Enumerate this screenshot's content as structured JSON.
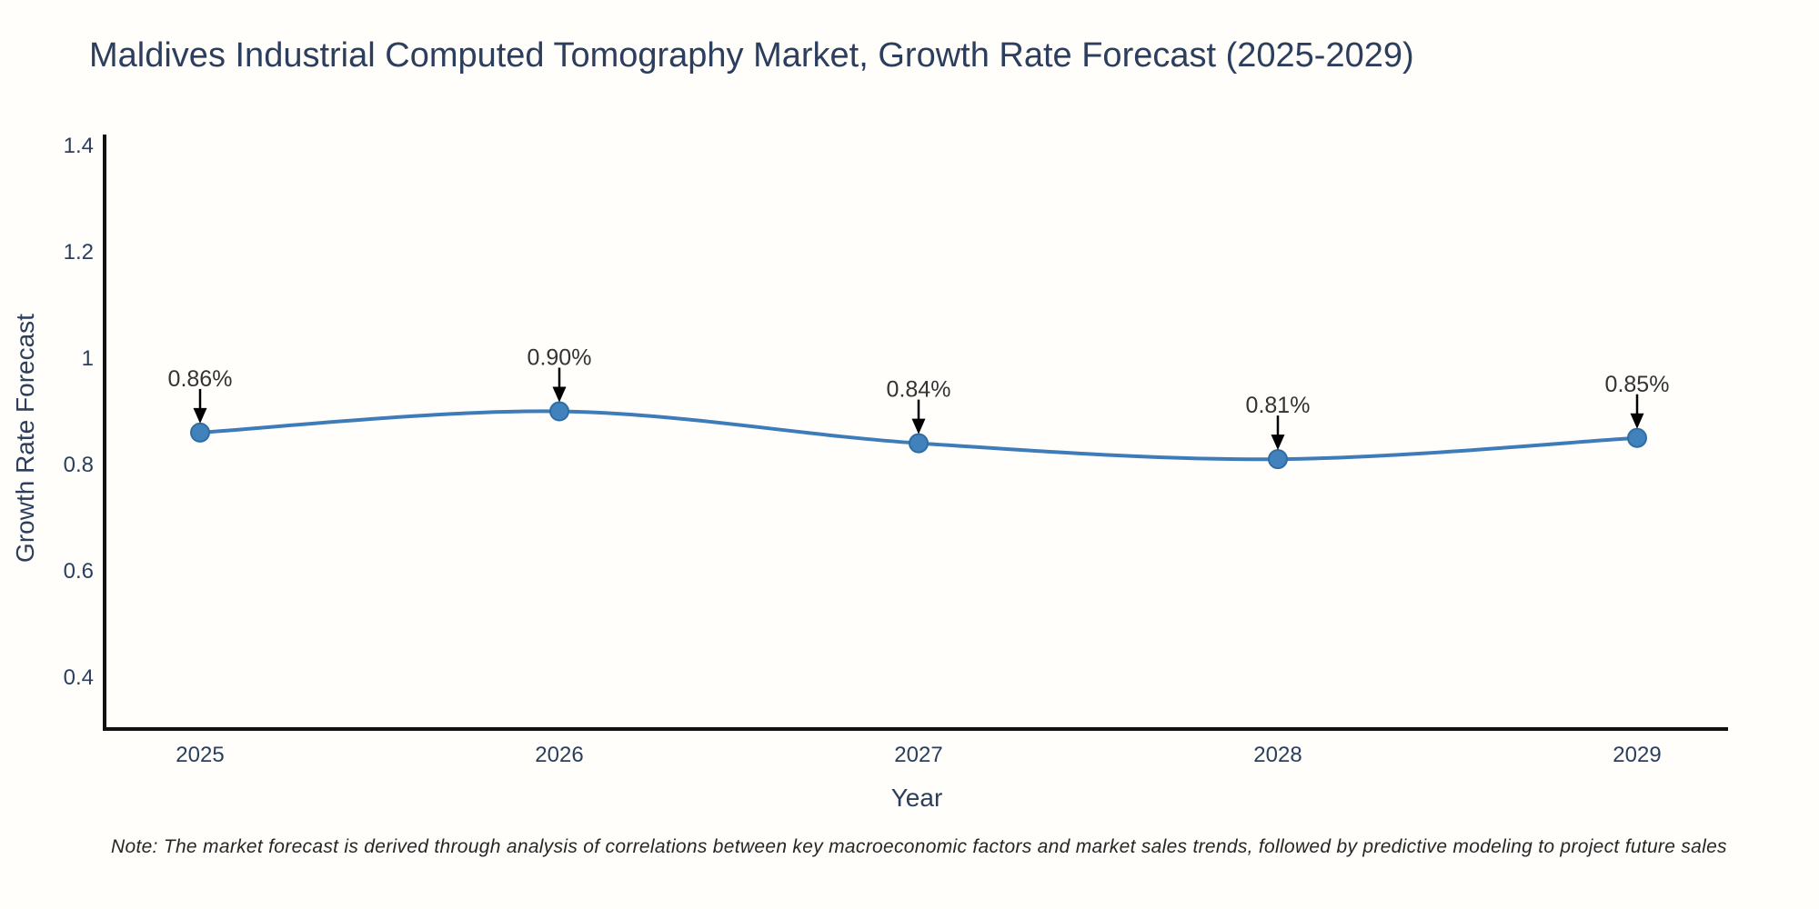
{
  "title": "Maldives Industrial Computed Tomography Market, Growth Rate Forecast (2025-2029)",
  "footnote": "Note: The market forecast is derived through analysis of correlations between key macroeconomic factors and market sales trends, followed by predictive modeling to project future sales",
  "chart_data": {
    "type": "line",
    "title": "Maldives Industrial Computed Tomography Market, Growth Rate Forecast (2025-2029)",
    "xlabel": "Year",
    "ylabel": "Growth Rate Forecast",
    "categories": [
      "2025",
      "2026",
      "2027",
      "2028",
      "2029"
    ],
    "x": [
      2025,
      2026,
      2027,
      2028,
      2029
    ],
    "values": [
      0.86,
      0.9,
      0.84,
      0.81,
      0.85
    ],
    "point_labels": [
      "0.86%",
      "0.90%",
      "0.84%",
      "0.81%",
      "0.85%"
    ],
    "y_ticks": [
      "1.4",
      "1.2",
      "1",
      "0.8",
      "0.6",
      "0.4"
    ],
    "y_tick_values": [
      1.4,
      1.2,
      1,
      0.8,
      0.6,
      0.4
    ],
    "ylim": [
      0.3,
      1.42
    ],
    "line_shape": "spline",
    "grid": false,
    "legend_position": "none",
    "annotations": "black down-arrows from each value label to its data point",
    "colors": {
      "line": "#3e7cb9",
      "marker_fill": "#4182bd",
      "marker_edge": "#2e6da4",
      "axis": "#111111",
      "tick_label": "#2a3f5f",
      "title": "#2c3e5d",
      "annotation_text": "#333333",
      "annotation_arrow": "#000000",
      "background": "#fffefb"
    }
  }
}
